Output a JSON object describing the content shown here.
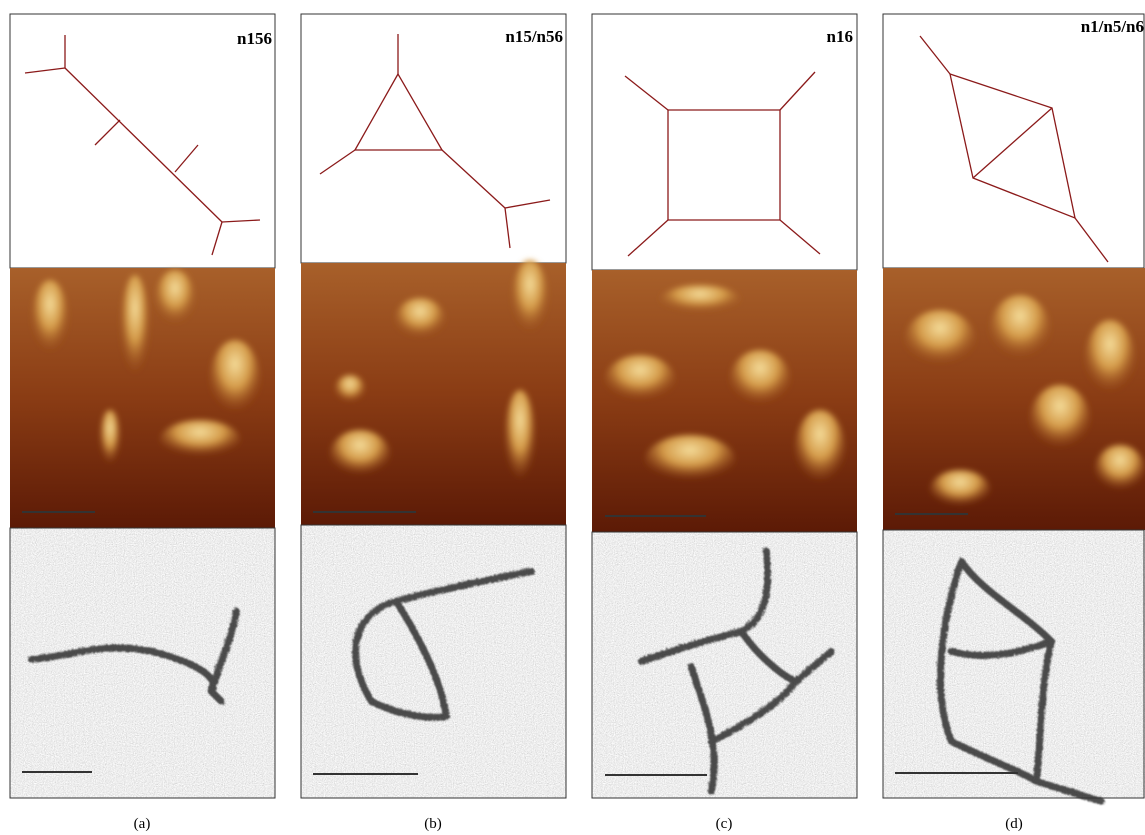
{
  "panels": [
    {
      "label": "n156",
      "caption": "(a)"
    },
    {
      "label": "n15/n56",
      "caption": "(b)"
    },
    {
      "label": "n16",
      "caption": "(c)"
    },
    {
      "label": "n1/n5/n6",
      "caption": "(d)"
    }
  ]
}
